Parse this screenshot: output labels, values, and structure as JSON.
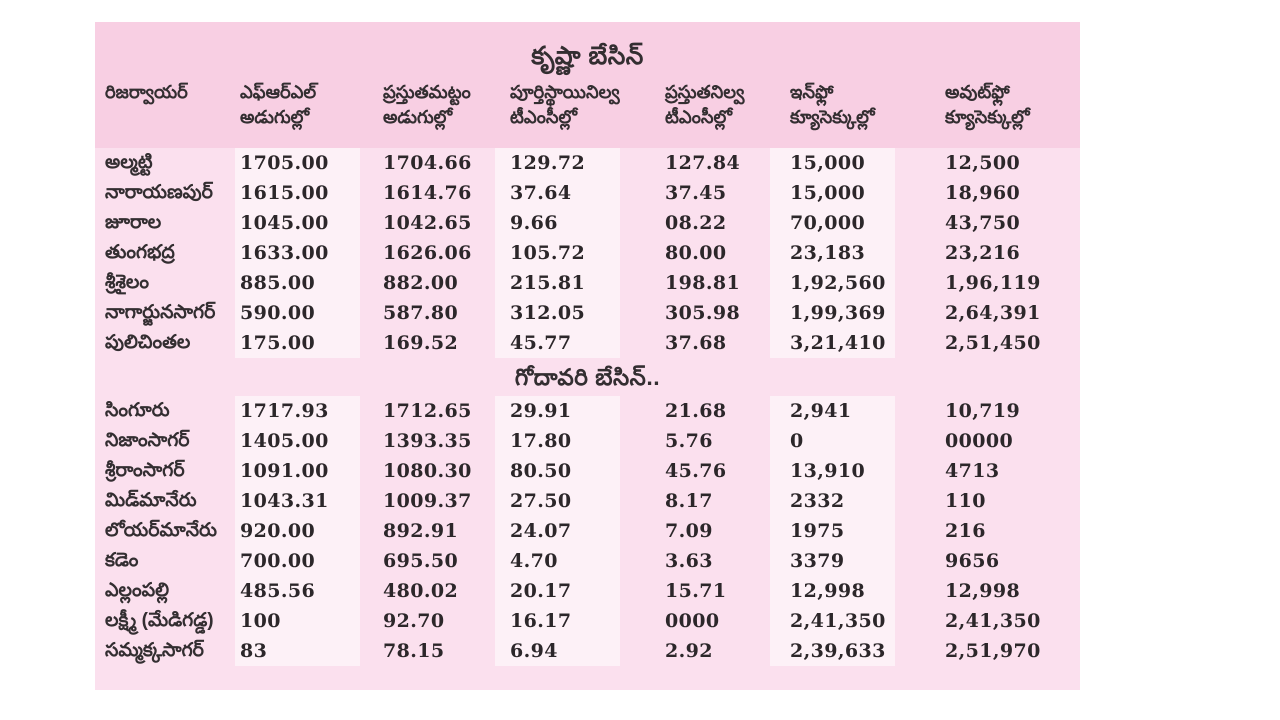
{
  "colors": {
    "page_background": "#ffffff",
    "table_background": "#fbe0ee",
    "header_band": "#f8cfe3",
    "column_stripe": "#fdf1f7",
    "text": "#2c272a"
  },
  "table": {
    "krishna_title": "కృష్ణా బేసిన్",
    "godavari_title": "గోదావరి బేసిన్..",
    "columns": [
      {
        "line1": "రిజర్వాయర్",
        "line2": ""
      },
      {
        "line1": "ఎఫ్ఆర్ఎల్",
        "line2": "అడుగుల్లో"
      },
      {
        "line1": "ప్రస్తుతమట్టం",
        "line2": "అడుగుల్లో"
      },
      {
        "line1": "పూర్తిస్థాయినిల్వ",
        "line2": "టీఎంసీల్లో"
      },
      {
        "line1": "ప్రస్తుతనిల్వ",
        "line2": "టీఎంసీల్లో"
      },
      {
        "line1": "ఇన్‌ఫ్లో",
        "line2": "క్యూసెక్కుల్లో"
      },
      {
        "line1": "అవుట్‌ఫ్లో",
        "line2": "క్యూసెక్కుల్లో"
      }
    ],
    "krishna_rows": [
      {
        "name": "అల్మట్టి",
        "values": [
          "1705.00",
          "1704.66",
          "129.72",
          "127.84",
          "15,000",
          "12,500"
        ]
      },
      {
        "name": "నారాయణపుర్",
        "values": [
          "1615.00",
          "1614.76",
          "37.64",
          "37.45",
          "15,000",
          "18,960"
        ]
      },
      {
        "name": "జూరాల",
        "values": [
          "1045.00",
          "1042.65",
          "9.66",
          "08.22",
          "70,000",
          "43,750"
        ]
      },
      {
        "name": "తుంగభద్ర",
        "values": [
          "1633.00",
          "1626.06",
          "105.72",
          "80.00",
          "23,183",
          "23,216"
        ]
      },
      {
        "name": "శ్రీశైలం",
        "values": [
          "885.00",
          "882.00",
          "215.81",
          "198.81",
          "1,92,560",
          "1,96,119"
        ]
      },
      {
        "name": "నాగార్జునసాగర్",
        "values": [
          "590.00",
          "587.80",
          "312.05",
          "305.98",
          "1,99,369",
          "2,64,391"
        ]
      },
      {
        "name": "పులిచింతల",
        "values": [
          "175.00",
          "169.52",
          "45.77",
          "37.68",
          "3,21,410",
          "2,51,450"
        ]
      }
    ],
    "godavari_rows": [
      {
        "name": "సింగూరు",
        "values": [
          "1717.93",
          "1712.65",
          "29.91",
          "21.68",
          "2,941",
          "10,719"
        ]
      },
      {
        "name": "నిజాంసాగర్",
        "values": [
          "1405.00",
          "1393.35",
          "17.80",
          "5.76",
          "0",
          "00000"
        ]
      },
      {
        "name": "శ్రీరాంసాగర్",
        "values": [
          "1091.00",
          "1080.30",
          "80.50",
          "45.76",
          "13,910",
          "4713"
        ]
      },
      {
        "name": "మిడ్‌మానేరు",
        "values": [
          "1043.31",
          "1009.37",
          "27.50",
          "8.17",
          "2332",
          "110"
        ]
      },
      {
        "name": "లోయర్‌మానేరు",
        "values": [
          "920.00",
          "892.91",
          "24.07",
          "7.09",
          "1975",
          "216"
        ]
      },
      {
        "name": "కడెం",
        "values": [
          "700.00",
          "695.50",
          "4.70",
          "3.63",
          "3379",
          "9656"
        ]
      },
      {
        "name": "ఎల్లంపల్లి",
        "values": [
          "485.56",
          "480.02",
          "20.17",
          "15.71",
          "12,998",
          "12,998"
        ]
      },
      {
        "name": "లక్ష్మీ (మేడిగడ్డ)",
        "values": [
          "100",
          "92.70",
          "16.17",
          "0000",
          "2,41,350",
          "2,41,350"
        ]
      },
      {
        "name": "సమ్మక్కసాగర్",
        "values": [
          "83",
          "78.15",
          "6.94",
          "2.92",
          "2,39,633",
          "2,51,970"
        ]
      }
    ]
  }
}
